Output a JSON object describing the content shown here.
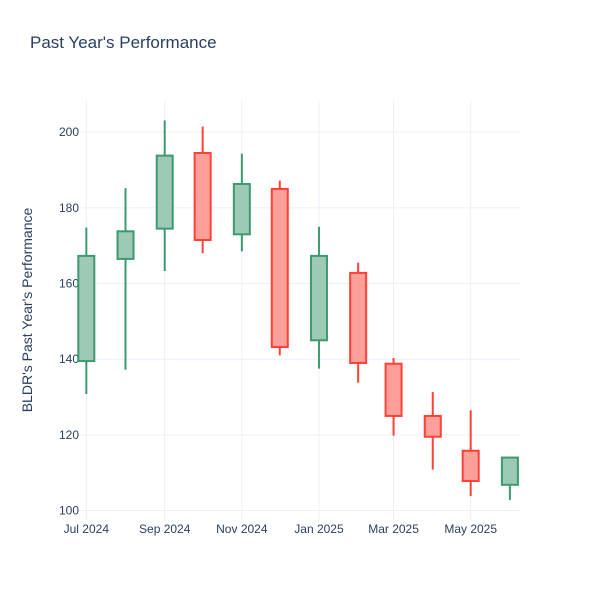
{
  "chart_data": {
    "type": "candlestick",
    "title": "Past Year's Performance",
    "xlabel": "",
    "ylabel": "BLDR's Past Year's Performance",
    "ylim": [
      97.5,
      208.5
    ],
    "yticks": [
      100,
      120,
      140,
      160,
      180,
      200
    ],
    "xticks": [
      {
        "label": "Jul 2024",
        "date": "2024-07-01"
      },
      {
        "label": "Sep 2024",
        "date": "2024-09-01"
      },
      {
        "label": "Nov 2024",
        "date": "2024-11-01"
      },
      {
        "label": "Jan 2025",
        "date": "2025-01-01"
      },
      {
        "label": "Mar 2025",
        "date": "2025-03-01"
      },
      {
        "label": "May 2025",
        "date": "2025-05-01"
      }
    ],
    "grid": true,
    "colors": {
      "increasing_line": "#3d9970",
      "increasing_fill": "#9ecab5",
      "decreasing_line": "#ff4136",
      "decreasing_fill": "#ff9f9a"
    },
    "candles": [
      {
        "date": "2024-07-01",
        "open": 139.5,
        "high": 174.8,
        "low": 130.8,
        "close": 167.3
      },
      {
        "date": "2024-08-01",
        "open": 166.5,
        "high": 185.2,
        "low": 137.2,
        "close": 173.8
      },
      {
        "date": "2024-09-01",
        "open": 174.5,
        "high": 203.1,
        "low": 163.3,
        "close": 193.8
      },
      {
        "date": "2024-10-01",
        "open": 194.5,
        "high": 201.5,
        "low": 168.0,
        "close": 171.5
      },
      {
        "date": "2024-11-01",
        "open": 173.0,
        "high": 194.3,
        "low": 168.5,
        "close": 186.3
      },
      {
        "date": "2024-12-01",
        "open": 185.0,
        "high": 187.2,
        "low": 141.0,
        "close": 143.2
      },
      {
        "date": "2025-01-01",
        "open": 145.0,
        "high": 175.0,
        "low": 137.5,
        "close": 167.3
      },
      {
        "date": "2025-02-01",
        "open": 162.8,
        "high": 165.5,
        "low": 133.8,
        "close": 139.0
      },
      {
        "date": "2025-03-01",
        "open": 138.8,
        "high": 140.3,
        "low": 119.8,
        "close": 125.0
      },
      {
        "date": "2025-04-01",
        "open": 125.0,
        "high": 131.3,
        "low": 110.8,
        "close": 119.5
      },
      {
        "date": "2025-05-01",
        "open": 115.8,
        "high": 126.5,
        "low": 103.8,
        "close": 107.8
      },
      {
        "date": "2025-06-01",
        "open": 106.8,
        "high": 114.0,
        "low": 102.8,
        "close": 114.0
      }
    ]
  }
}
